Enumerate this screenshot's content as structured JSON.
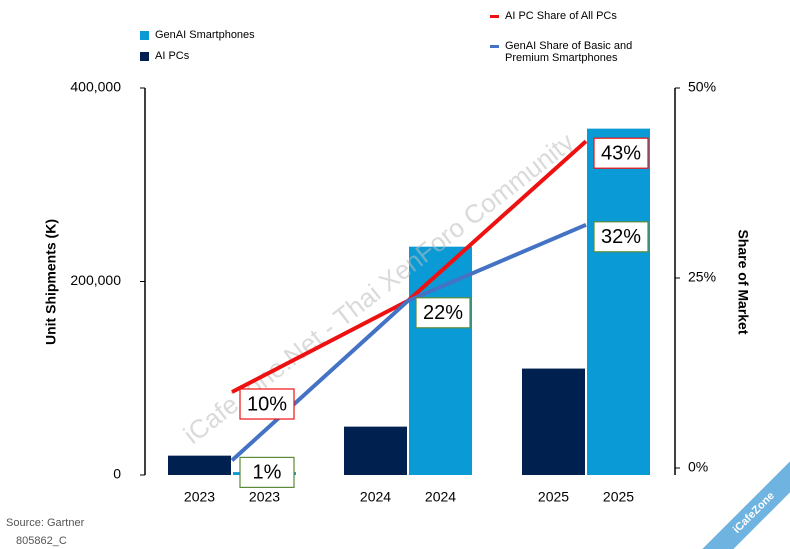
{
  "chart_data": {
    "type": "bar",
    "categories": [
      "2023",
      "2024",
      "2025"
    ],
    "series": [
      {
        "name": "AI PCs",
        "color": "#002050",
        "values": [
          20000,
          50000,
          110000
        ]
      },
      {
        "name": "GenAI Smartphones",
        "color": "#0a9bd6",
        "values": [
          3000,
          236000,
          358000
        ]
      },
      {
        "name": "AI PC Share of All PCs",
        "type": "line",
        "axis": "y2",
        "color": "#ee1111",
        "values": [
          10,
          22,
          43
        ],
        "value_labels": [
          "10%",
          null,
          "43%"
        ]
      },
      {
        "name": "GenAI Share of Basic and Premium Smartphones",
        "type": "line",
        "axis": "y2",
        "color": "#4472c4",
        "values": [
          1,
          22,
          32
        ],
        "value_labels": [
          "1%",
          "22%",
          "32%"
        ]
      }
    ],
    "y_label": "Unit Shipments (K)",
    "y2_label": "Share of Market",
    "ylim": [
      0,
      400000
    ],
    "yticks": [
      0,
      {
        "value": 200000,
        "label": "200,000"
      },
      {
        "value": 400000,
        "label": "400,000"
      }
    ],
    "y2lim": [
      0,
      50
    ],
    "y2ticks": [
      {
        "value": 0,
        "label": "0%"
      },
      {
        "value": 25,
        "label": "25%"
      },
      {
        "value": 50,
        "label": "50%"
      }
    ],
    "source": "Source: Gartner",
    "code": "805862_C",
    "watermark": "iCafeZone.Net - Thai XenForo Community",
    "badge": "iCafeZone"
  }
}
